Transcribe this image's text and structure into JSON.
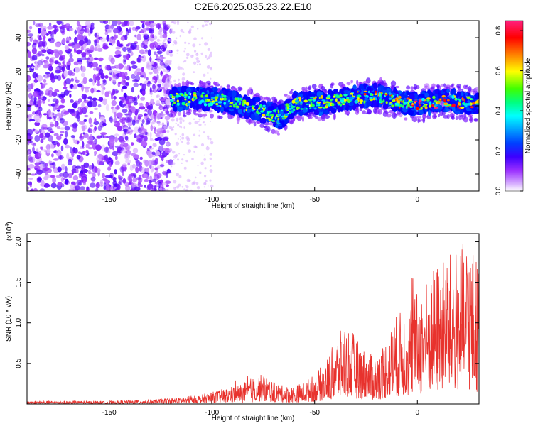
{
  "figure_title": "C2E6.2025.035.23.22.E10",
  "chart_data": [
    {
      "type": "heatmap",
      "title": "",
      "xlabel": "Height of straight line (km)",
      "ylabel": "Frequency (Hz)",
      "xlim": [
        -190,
        30
      ],
      "ylim": [
        -50,
        50
      ],
      "xticks": [
        -150,
        -100,
        -50,
        0
      ],
      "yticks": [
        -40,
        -20,
        0,
        20,
        40
      ],
      "colorbar": {
        "label": "Normalized spectral amplitude",
        "range": [
          0,
          0.85
        ],
        "ticks": [
          0.0,
          0.2,
          0.4,
          0.6,
          0.8
        ],
        "colormap": [
          "#ffffff",
          "#9b30ff",
          "#4b00ff",
          "#0000ff",
          "#00a0ff",
          "#00ffff",
          "#00ff80",
          "#80ff00",
          "#ffff00",
          "#ff8000",
          "#ff0000",
          "#ff2080"
        ]
      },
      "signal_band": [
        {
          "x": -120,
          "center": 4,
          "amplitude": 0.35
        },
        {
          "x": -100,
          "center": 4,
          "amplitude": 0.35
        },
        {
          "x": -90,
          "center": 2,
          "amplitude": 0.3
        },
        {
          "x": -75,
          "center": -3,
          "amplitude": 0.35
        },
        {
          "x": -67,
          "center": -7,
          "amplitude": 0.3
        },
        {
          "x": -60,
          "center": 1,
          "amplitude": 0.35
        },
        {
          "x": -45,
          "center": 2,
          "amplitude": 0.4
        },
        {
          "x": -30,
          "center": 5,
          "amplitude": 0.45
        },
        {
          "x": -20,
          "center": 6,
          "amplitude": 0.5
        },
        {
          "x": -10,
          "center": 3,
          "amplitude": 0.45
        },
        {
          "x": 0,
          "center": 1,
          "amplitude": 0.6
        },
        {
          "x": 15,
          "center": 3,
          "amplitude": 0.55
        },
        {
          "x": 30,
          "center": 1,
          "amplitude": 0.5
        }
      ],
      "noise_region": [
        -190,
        -120
      ]
    },
    {
      "type": "line",
      "title": "",
      "xlabel": "Height of straight line (km)",
      "ylabel": "SNR (10 * v/v)",
      "multiplier_label": "(x10",
      "multiplier_exponent": "4",
      "multiplier_suffix": ")",
      "xlim": [
        -190,
        30
      ],
      "ylim": [
        0,
        2.1
      ],
      "xticks": [
        -150,
        -100,
        -50,
        0
      ],
      "yticks": [
        0.5,
        1.0,
        1.5,
        2.0
      ],
      "ytick_labels": [
        "0.5",
        "1.0",
        "1.5",
        "2.0"
      ],
      "color": "#e8322d",
      "series": [
        {
          "x": [
            -190,
            -170,
            -150,
            -130,
            -120,
            -110,
            -100,
            -95,
            -90,
            -85,
            -80,
            -75,
            -70,
            -65,
            -60,
            -55,
            -50,
            -45,
            -40,
            -35,
            -30,
            -25,
            -20,
            -15,
            -10,
            -5,
            0,
            5,
            10,
            15,
            20,
            25,
            30
          ],
          "values": [
            0.02,
            0.02,
            0.02,
            0.03,
            0.04,
            0.05,
            0.08,
            0.1,
            0.12,
            0.14,
            0.18,
            0.2,
            0.15,
            0.12,
            0.12,
            0.15,
            0.2,
            0.28,
            0.42,
            0.55,
            0.45,
            0.35,
            0.32,
            0.45,
            0.6,
            0.65,
            0.75,
            0.85,
            0.95,
            1.0,
            1.05,
            1.1,
            0.95
          ]
        }
      ]
    }
  ]
}
